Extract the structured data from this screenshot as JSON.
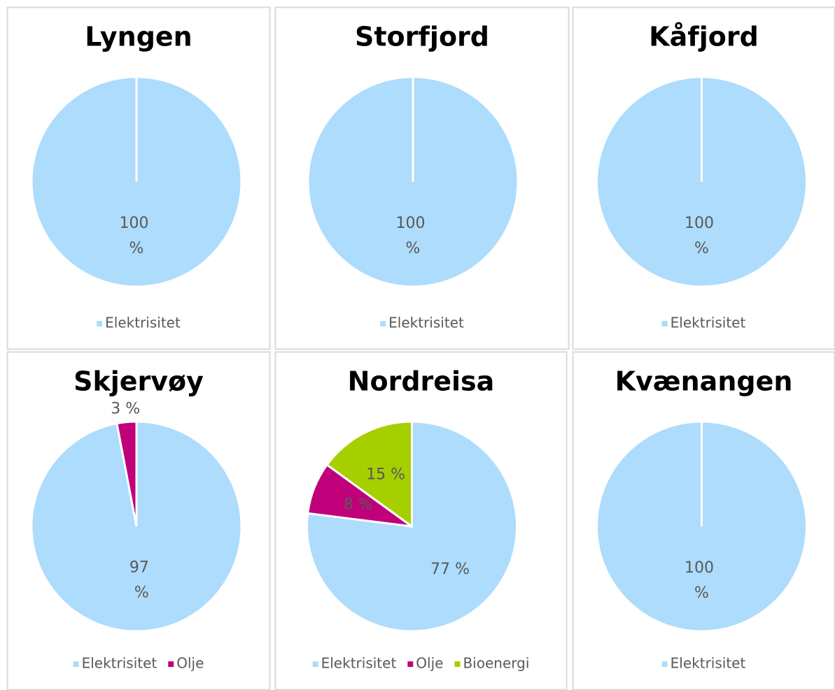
{
  "chart_data": [
    {
      "type": "pie",
      "title": "Lyngen",
      "categories": [
        "Elektrisitet"
      ],
      "values": [
        100
      ],
      "value_labels": [
        "100 %"
      ],
      "colors": [
        "#addcfc"
      ]
    },
    {
      "type": "pie",
      "title": "Storfjord",
      "categories": [
        "Elektrisitet"
      ],
      "values": [
        100
      ],
      "value_labels": [
        "100 %"
      ],
      "colors": [
        "#addcfc"
      ]
    },
    {
      "type": "pie",
      "title": "Kåfjord",
      "categories": [
        "Elektrisitet"
      ],
      "values": [
        100
      ],
      "value_labels": [
        "100 %"
      ],
      "colors": [
        "#addcfc"
      ]
    },
    {
      "type": "pie",
      "title": "Skjervøy",
      "categories": [
        "Elektrisitet",
        "Olje"
      ],
      "values": [
        97,
        3
      ],
      "value_labels": [
        "97 %",
        "3 %"
      ],
      "colors": [
        "#addcfc",
        "#c0007a"
      ]
    },
    {
      "type": "pie",
      "title": "Nordreisa",
      "categories": [
        "Elektrisitet",
        "Olje",
        "Bioenergi"
      ],
      "values": [
        77,
        8,
        15
      ],
      "value_labels": [
        "77 %",
        "8 %",
        "15 %"
      ],
      "colors": [
        "#addcfc",
        "#c0007a",
        "#a6cf00"
      ]
    },
    {
      "type": "pie",
      "title": "Kvænangen",
      "categories": [
        "Elektrisitet"
      ],
      "values": [
        100
      ],
      "value_labels": [
        "100 %"
      ],
      "colors": [
        "#addcfc"
      ]
    }
  ]
}
